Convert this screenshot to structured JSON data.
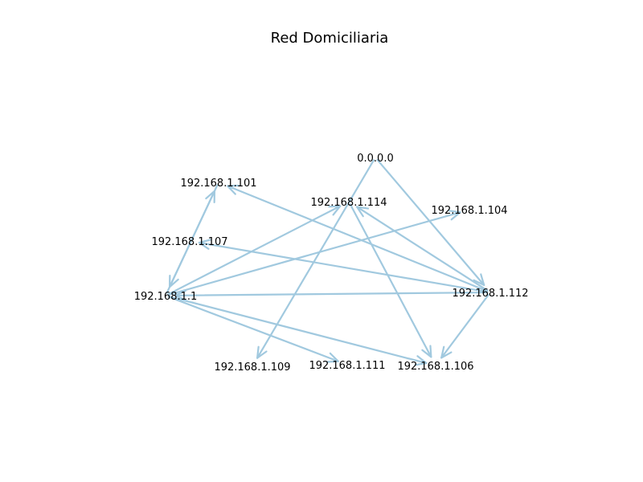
{
  "title": "Red Domiciliaria",
  "colors": {
    "edge": "#a1c9df",
    "text": "#000000",
    "background": "#ffffff"
  },
  "nodes": [
    {
      "id": "n0000",
      "label": "0.0.0.0"
    },
    {
      "id": "n101",
      "label": "192.168.1.101"
    },
    {
      "id": "n114",
      "label": "192.168.1.114"
    },
    {
      "id": "n104",
      "label": "192.168.1.104"
    },
    {
      "id": "n107",
      "label": "192.168.1.107"
    },
    {
      "id": "n1",
      "label": "192.168.1.1"
    },
    {
      "id": "n112",
      "label": "192.168.1.112"
    },
    {
      "id": "n109",
      "label": "192.168.1.109"
    },
    {
      "id": "n111",
      "label": "192.168.1.111"
    },
    {
      "id": "n106",
      "label": "192.168.1.106"
    }
  ],
  "edges": [
    {
      "from": "n0000",
      "to": "n109"
    },
    {
      "from": "n0000",
      "to": "n112"
    },
    {
      "from": "n1",
      "to": "n101"
    },
    {
      "from": "n101",
      "to": "n1"
    },
    {
      "from": "n1",
      "to": "n114"
    },
    {
      "from": "n1",
      "to": "n104"
    },
    {
      "from": "n1",
      "to": "n111"
    },
    {
      "from": "n1",
      "to": "n106"
    },
    {
      "from": "n112",
      "to": "n1"
    },
    {
      "from": "n112",
      "to": "n101"
    },
    {
      "from": "n112",
      "to": "n107"
    },
    {
      "from": "n112",
      "to": "n114"
    },
    {
      "from": "n112",
      "to": "n106"
    },
    {
      "from": "n114",
      "to": "n106"
    }
  ]
}
